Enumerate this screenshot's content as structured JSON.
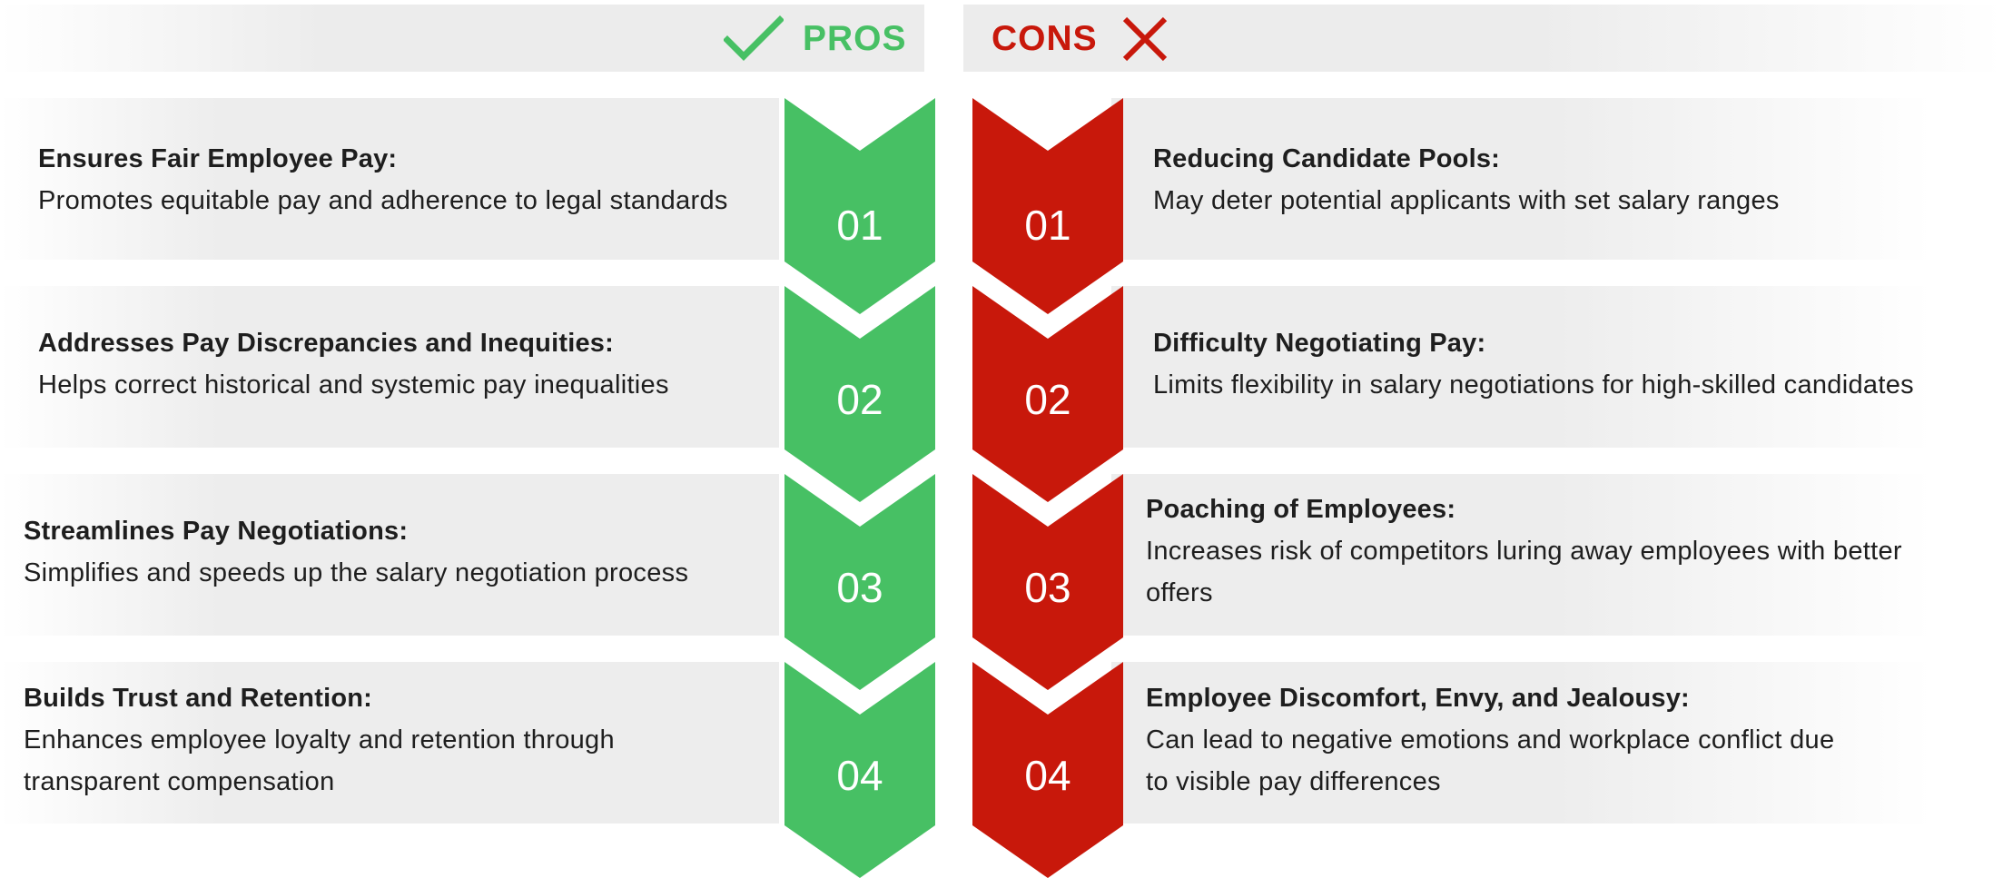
{
  "pros": {
    "title": "PROS",
    "icon": "check-icon",
    "color": "#47c064",
    "items": [
      {
        "number": "01",
        "title": "Ensures Fair Employee Pay:",
        "desc": "Promotes equitable pay and adherence to legal standards"
      },
      {
        "number": "02",
        "title": "Addresses Pay Discrepancies and Inequities:",
        "desc": "Helps correct historical and systemic pay inequalities"
      },
      {
        "number": "03",
        "title": "Streamlines Pay Negotiations:",
        "desc": "Simplifies and speeds up the salary negotiation process"
      },
      {
        "number": "04",
        "title": "Builds Trust and Retention:",
        "desc_line1": "Enhances employee loyalty and retention through",
        "desc_line2": "transparent compensation"
      }
    ]
  },
  "cons": {
    "title": "CONS",
    "icon": "x-icon",
    "color": "#c8180b",
    "items": [
      {
        "number": "01",
        "title": "Reducing Candidate Pools:",
        "desc": "May deter potential applicants with set salary ranges"
      },
      {
        "number": "02",
        "title": "Difficulty Negotiating Pay:",
        "desc": "Limits flexibility in salary negotiations for high-skilled candidates"
      },
      {
        "number": "03",
        "title": "Poaching of Employees:",
        "desc_line1": "Increases risk of competitors luring away employees with better",
        "desc_line2": "offers"
      },
      {
        "number": "04",
        "title": "Employee Discomfort, Envy, and Jealousy:",
        "desc_line1": "Can lead to negative emotions and workplace conflict due",
        "desc_line2": "to visible pay differences"
      }
    ]
  }
}
